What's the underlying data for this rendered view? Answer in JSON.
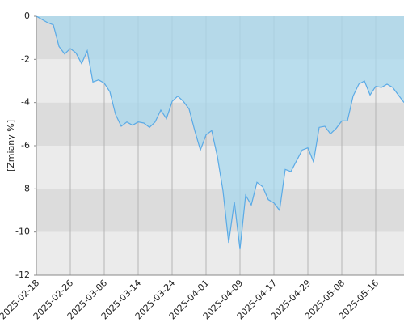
{
  "chart_data": {
    "type": "area",
    "y_label": "[Zmiany %]",
    "categories": [
      "2025-02-18",
      null,
      null,
      null,
      null,
      null,
      "2025-02-26",
      null,
      null,
      null,
      null,
      null,
      "2025-03-06",
      null,
      null,
      null,
      null,
      null,
      "2025-03-14",
      null,
      null,
      null,
      null,
      null,
      "2025-03-24",
      null,
      null,
      null,
      null,
      null,
      "2025-04-01",
      null,
      null,
      null,
      null,
      null,
      "2025-04-09",
      null,
      null,
      null,
      null,
      null,
      "2025-04-17",
      null,
      null,
      null,
      null,
      null,
      "2025-04-29",
      null,
      null,
      null,
      null,
      null,
      "2025-05-08",
      null,
      null,
      null,
      null,
      null,
      "2025-05-16",
      null,
      null,
      null,
      null,
      null
    ],
    "values": [
      0,
      -0.15,
      -0.3,
      -0.4,
      -1.4,
      -1.75,
      -1.5,
      -1.7,
      -2.2,
      -1.6,
      -3.05,
      -2.95,
      -3.1,
      -3.5,
      -4.55,
      -5.1,
      -4.9,
      -5.05,
      -4.9,
      -4.95,
      -5.15,
      -4.9,
      -4.35,
      -4.75,
      -3.95,
      -3.7,
      -3.95,
      -4.3,
      -5.3,
      -6.2,
      -5.5,
      -5.3,
      -6.5,
      -8.1,
      -10.5,
      -8.6,
      -10.8,
      -8.3,
      -8.75,
      -7.7,
      -7.9,
      -8.5,
      -8.65,
      -9.0,
      -7.1,
      -7.2,
      -6.7,
      -6.2,
      -6.1,
      -6.75,
      -5.15,
      -5.1,
      -5.45,
      -5.2,
      -4.85,
      -4.85,
      -3.7,
      -3.15,
      -3.0,
      -3.65,
      -3.25,
      -3.3,
      -3.15,
      -3.3,
      -3.65,
      -4.0
    ],
    "color": "#5aaae6",
    "fill_color": "#a8d8ee",
    "ylim": [
      -12,
      0
    ],
    "yticks": [
      0,
      -2,
      -4,
      -6,
      -8,
      -10,
      -12
    ],
    "band_colors": [
      "#dcdcdc",
      "#ebebeb"
    ],
    "grid": true
  }
}
